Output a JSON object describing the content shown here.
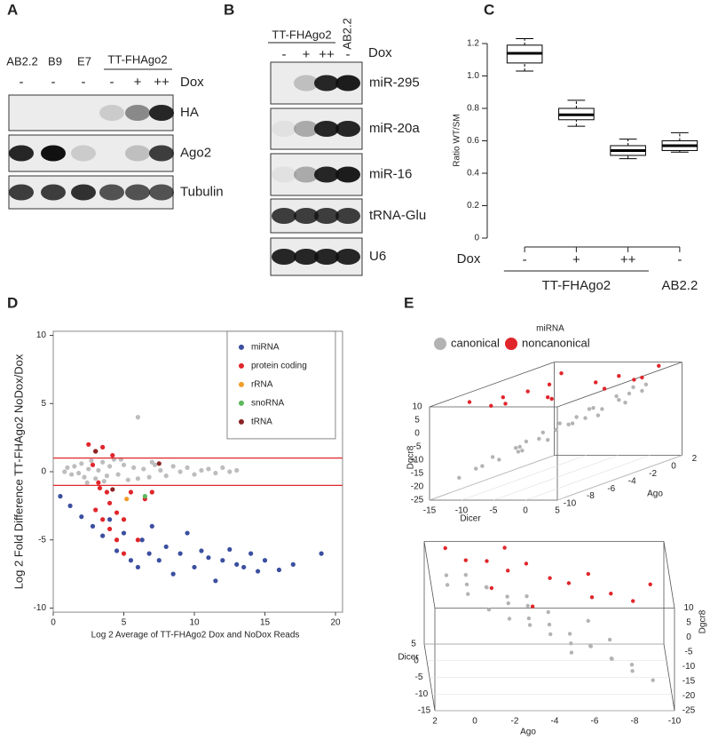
{
  "panel_labels": [
    "A",
    "B",
    "C",
    "D",
    "E"
  ],
  "blots": [
    {
      "lanes": [
        "AB2.2",
        "B9",
        "E7"
      ],
      "group": "TT-FHAgo2",
      "dox_label": "Dox",
      "dox": [
        "-",
        "-",
        "-",
        "-",
        "+",
        "++"
      ],
      "rows": [
        "HA",
        "Ago2",
        "Tubulin"
      ]
    },
    {
      "group": "TT-FHAgo2",
      "lanes": [
        "AB2.2"
      ],
      "dox_label": "Dox",
      "dox": [
        "-",
        "+",
        "++",
        "-"
      ],
      "rows": [
        "miR-295",
        "miR-20a",
        "miR-16",
        "tRNA-Glu",
        "U6"
      ]
    }
  ],
  "chart_data": [
    {
      "type": "box",
      "ylabel": "Ratio WT/SM",
      "ylim": [
        0,
        1.25
      ],
      "yticks": [
        0,
        0.2,
        0.4,
        0.6,
        0.8,
        {
          "value": 1,
          "label": "1.0"
        },
        1.2
      ],
      "x_label": "Dox",
      "categories": [
        "-",
        "+",
        "++",
        "-"
      ],
      "groups": [
        {
          "name": "TT-FHAgo2",
          "size": 3
        },
        {
          "name": "AB2.2",
          "size": 1
        }
      ],
      "color": "#000000",
      "boxes": {
        "whislo": [
          1.03,
          0.69,
          0.49,
          0.53
        ],
        "q1": [
          1.08,
          0.73,
          0.51,
          0.54
        ],
        "med": [
          1.14,
          0.76,
          0.54,
          0.57
        ],
        "q3": [
          1.19,
          0.8,
          0.57,
          0.6
        ],
        "whishi": [
          1.23,
          0.85,
          0.61,
          0.65
        ]
      }
    },
    {
      "type": "scatter",
      "ylabel": "Log 2 Fold Difference TT-FHAgo2 NoDox/Dox",
      "xlabel": "Log 2 Average of TT-FHAgo2 Dox and NoDox Reads",
      "xlim": [
        0,
        20.5
      ],
      "ylim": [
        -10.3,
        10.3
      ],
      "xticks": [
        0,
        5,
        10,
        15,
        20
      ],
      "yticks": [
        -10,
        -5,
        0,
        5,
        10
      ],
      "hlines": [
        1,
        -1
      ],
      "hline_color": "#e0262b",
      "legend": "upper right",
      "series": [
        {
          "color": "#bdbdbd",
          "x": [
            0.8,
            1,
            1.3,
            1.5,
            1.8,
            2,
            2.2,
            2.5,
            2.7,
            3,
            3.2,
            3.5,
            3.8,
            4,
            4.3,
            4.6,
            5,
            5.3,
            5.7,
            6,
            6.4,
            6.8,
            7.2,
            7.6,
            8,
            8.5,
            9,
            9.5,
            10,
            10.5,
            11,
            11.5,
            12,
            12.5,
            13,
            2.4,
            3.6,
            4.8,
            6,
            7
          ],
          "y": [
            0,
            0.3,
            -0.2,
            0.4,
            -0.1,
            0.6,
            -0.4,
            0.2,
            0.8,
            -0.5,
            0.1,
            0.7,
            -0.3,
            0.4,
            0.9,
            -0.2,
            0.5,
            -0.6,
            0.3,
            4,
            0.2,
            -0.4,
            0.5,
            0.1,
            -0.3,
            0.4,
            0,
            0.3,
            -0.2,
            0.1,
            0.2,
            -0.1,
            0.3,
            0,
            0.1,
            -0.8,
            -0.7,
            0.9,
            -0.5,
            0.7
          ]
        },
        {
          "name": "miRNA",
          "color": "#3b4fa0",
          "x": [
            0.5,
            1.2,
            2,
            2.8,
            3.5,
            4,
            4.5,
            5,
            5.5,
            6,
            6.3,
            6.8,
            7,
            7.5,
            8,
            8.5,
            9,
            9.5,
            10,
            10.5,
            11,
            11.5,
            12,
            12.5,
            13,
            13.5,
            14,
            14.5,
            15,
            16,
            17,
            19
          ],
          "y": [
            -1.8,
            -2.5,
            -3.3,
            -4,
            -4.7,
            -3.5,
            -5.8,
            -4.5,
            -6.5,
            -7,
            -5,
            -6,
            -4,
            -6.5,
            -5.5,
            -7.5,
            -6,
            -4.5,
            -7,
            -5.8,
            -6.3,
            -8,
            -6.5,
            -5.7,
            -6.8,
            -7,
            -6,
            -7.3,
            -6.5,
            -7.2,
            -6.8,
            -6
          ]
        },
        {
          "name": "protein coding",
          "color": "#e0262b",
          "x": [
            2.5,
            3,
            3.2,
            3.5,
            3.8,
            4,
            4.2,
            4.5,
            5,
            5.5,
            6,
            6.5,
            7,
            3,
            3.5,
            4,
            4.5,
            5,
            2.8,
            3.3
          ],
          "y": [
            2,
            1.5,
            -0.8,
            1.8,
            -1.5,
            -2.3,
            1.2,
            -3,
            -3.5,
            -1.5,
            -5,
            -2,
            -1.5,
            -2.8,
            -3.5,
            -4.2,
            -5,
            -6,
            0.5,
            -1.2
          ]
        },
        {
          "name": "rRNA",
          "color": "#f39c2a",
          "x": [
            5.2
          ],
          "y": [
            -2
          ]
        },
        {
          "name": "snoRNA",
          "color": "#5cb85c",
          "x": [
            6.5
          ],
          "y": [
            -1.8
          ]
        },
        {
          "name": "tRNA",
          "color": "#8b2323",
          "x": [
            3,
            4.2,
            7.5
          ],
          "y": [
            1.5,
            -1.3,
            0.6
          ]
        }
      ]
    },
    {
      "type": "scatter3d",
      "xlabel": "Dicer",
      "ylabel": "Ago",
      "zlabel": "Dgcr8",
      "legend_title": "miRNA",
      "xlim": [
        -15,
        5
      ],
      "ylim": [
        -10,
        2
      ],
      "zlim": [
        -25,
        10
      ],
      "xticks": [
        -15,
        -10,
        -5,
        0,
        5
      ],
      "yticks": [
        -10,
        -8,
        -6,
        -4,
        -2,
        0,
        2
      ],
      "zticks": [
        -25,
        -20,
        -15,
        -10,
        -5,
        0,
        5,
        10
      ],
      "series": [
        {
          "name": "canonical",
          "color": "#b3b3b3",
          "x": [
            -12,
            -11,
            -10,
            -10,
            -9,
            -8,
            -8,
            -7,
            -7,
            -6,
            -6,
            -5,
            -5,
            -4,
            -4,
            -3,
            -3,
            -2,
            -2,
            -1,
            -1,
            0,
            0,
            1,
            1,
            2,
            -9,
            -6,
            -3,
            0
          ],
          "y": [
            -9,
            -8,
            -8,
            -7,
            -7,
            -6,
            -5,
            -6,
            -4,
            -5,
            -3,
            -4,
            -2,
            -3,
            -1,
            -4,
            -2,
            -3,
            0,
            -2,
            1,
            -1,
            0,
            -1,
            1,
            0,
            -5,
            -7,
            -6,
            -3
          ],
          "z": [
            -18,
            -16,
            -15,
            -13,
            -14,
            -11,
            -10,
            -12,
            -8,
            -9,
            -6,
            -7,
            -5,
            -6,
            -3,
            -5,
            -2,
            -4,
            0,
            -2,
            2,
            0,
            1,
            -1,
            3,
            2,
            -12,
            -11,
            -8,
            -3
          ]
        },
        {
          "name": "noncanonical",
          "color": "#e0262b",
          "x": [
            -12,
            -10,
            -8,
            -6,
            -4,
            -2,
            0,
            2,
            3,
            -11,
            -7,
            -3,
            1,
            4,
            -9
          ],
          "y": [
            -8,
            -6,
            -7,
            -4,
            -5,
            -2,
            -1,
            0,
            1,
            -3,
            -9,
            -6,
            -3,
            -2,
            -1
          ],
          "z": [
            9,
            8,
            7,
            10,
            6,
            8,
            9,
            7,
            10,
            6,
            9,
            8,
            7,
            9,
            10
          ]
        }
      ]
    }
  ]
}
